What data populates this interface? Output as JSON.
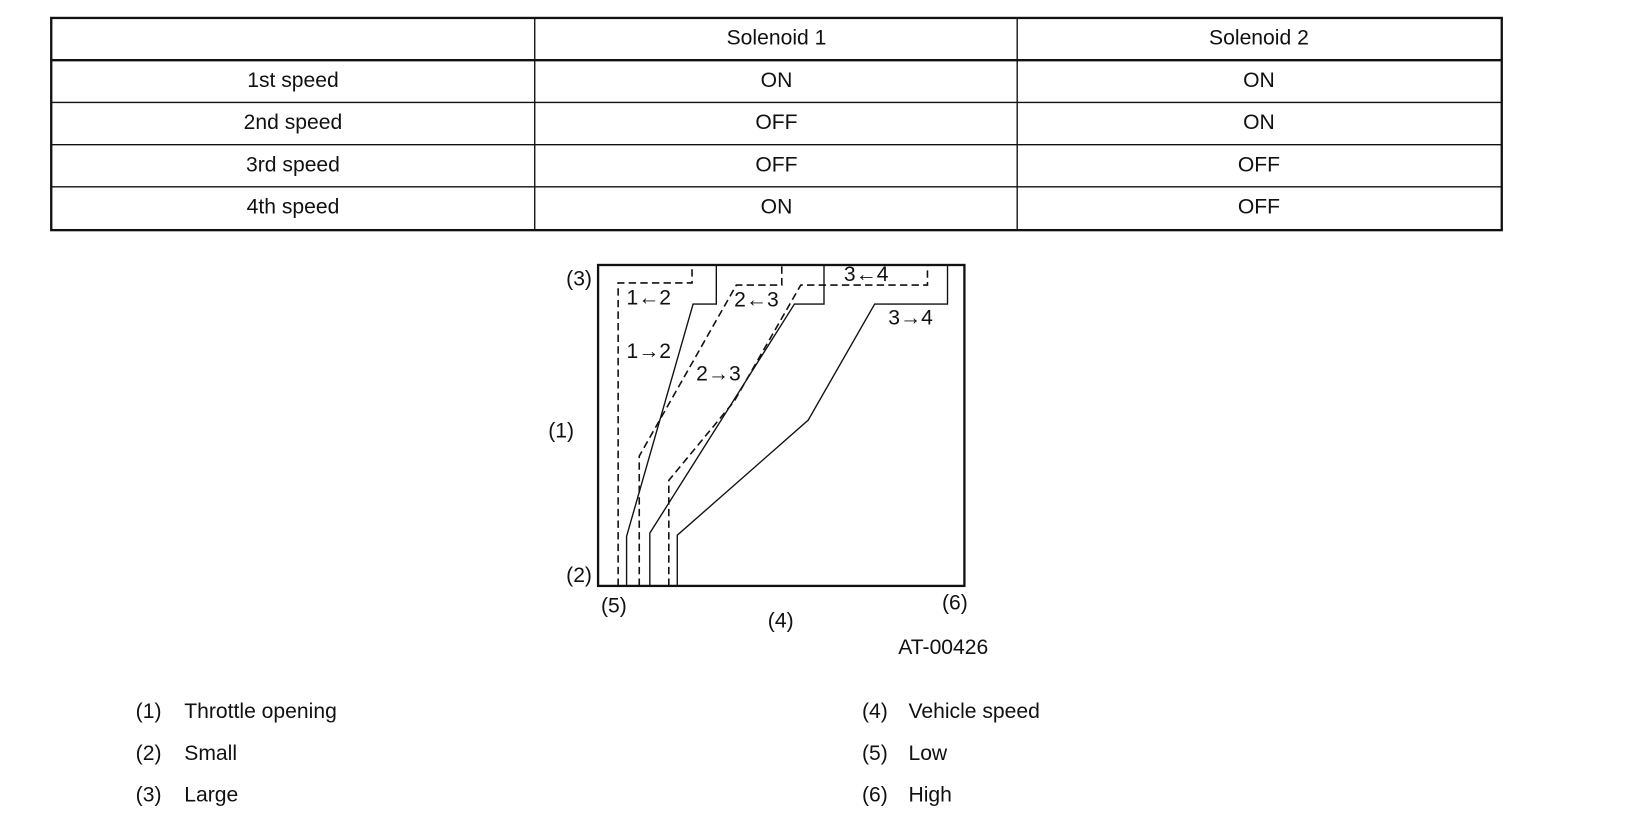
{
  "table": {
    "header": [
      "Solenoid 1",
      "Solenoid 2"
    ],
    "rows": [
      [
        "1st speed",
        "ON",
        "ON"
      ],
      [
        "2nd speed",
        "OFF",
        "ON"
      ],
      [
        "3rd speed",
        "OFF",
        "OFF"
      ],
      [
        "4th speed",
        "ON",
        "OFF"
      ]
    ]
  },
  "diagram": {
    "axis_labels": {
      "large": "(3)",
      "throttle": "(1)",
      "small": "(2)",
      "low": "(5)",
      "speed": "(4)",
      "high": "(6)"
    },
    "curves": {
      "down_1_2": "1←2",
      "up_1_2": "1→2",
      "down_2_3": "2←3",
      "up_2_3": "2→3",
      "down_3_4": "3←4",
      "up_3_4": "3→4"
    },
    "code": "AT-00426"
  },
  "legend": [
    {
      "num": "(1)",
      "text": "Throttle opening"
    },
    {
      "num": "(2)",
      "text": "Small"
    },
    {
      "num": "(3)",
      "text": "Large"
    },
    {
      "num": "(4)",
      "text": "Vehicle speed"
    },
    {
      "num": "(5)",
      "text": "Low"
    },
    {
      "num": "(6)",
      "text": "High"
    }
  ]
}
